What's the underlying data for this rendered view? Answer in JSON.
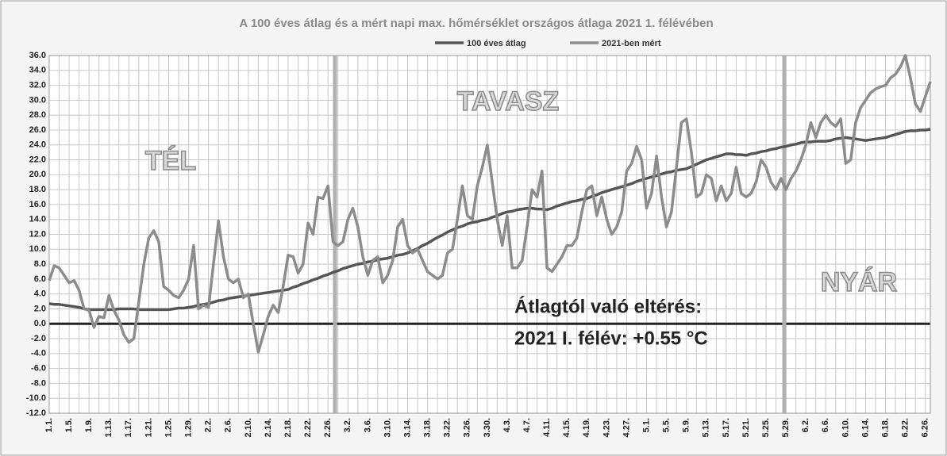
{
  "chart_data": {
    "type": "line",
    "title": "A 100 éves átlag és a mért napi max. hőmérséklet országos átlaga 2021 1. félévében",
    "annotations": [
      "TÉL",
      "TAVASZ",
      "NYÁR",
      "Átlagtól való eltérés:",
      "2021 I. félév: +0.55 °C"
    ],
    "ylim": [
      -12,
      36
    ],
    "yticks": [
      {
        "value": -12,
        "label": "-12.0"
      },
      {
        "value": -10,
        "label": "-10.0"
      },
      {
        "value": -8,
        "label": "-8.0"
      },
      {
        "value": -6,
        "label": "-6.0"
      },
      {
        "value": -4,
        "label": "-4.0"
      },
      {
        "value": -2,
        "label": "-2.0"
      },
      {
        "value": 0,
        "label": "0.0"
      },
      {
        "value": 2,
        "label": "2.0"
      },
      {
        "value": 4,
        "label": "4.0"
      },
      {
        "value": 6,
        "label": "6.0"
      },
      {
        "value": 8,
        "label": "8.0"
      },
      {
        "value": 10,
        "label": "10.0"
      },
      {
        "value": 12,
        "label": "12.0"
      },
      {
        "value": 14,
        "label": "14.0"
      },
      {
        "value": 16,
        "label": "16.0"
      },
      {
        "value": 18,
        "label": "18.0"
      },
      {
        "value": 20,
        "label": "20.0"
      },
      {
        "value": 22,
        "label": "22.0"
      },
      {
        "value": 24,
        "label": "24.0"
      },
      {
        "value": 26,
        "label": "26.0"
      },
      {
        "value": 28,
        "label": "28.0"
      },
      {
        "value": 30,
        "label": "30.0"
      },
      {
        "value": 32,
        "label": "32.0"
      },
      {
        "value": 34,
        "label": "34.0"
      },
      {
        "value": 36,
        "label": "36.0"
      }
    ],
    "grid": true,
    "categories": [
      "1.1.",
      null,
      null,
      null,
      "1.5.",
      null,
      null,
      null,
      "1.9.",
      null,
      null,
      null,
      "1.13.",
      null,
      null,
      null,
      "1.17.",
      null,
      null,
      null,
      "1.21.",
      null,
      null,
      null,
      "1.25.",
      null,
      null,
      null,
      "1.29.",
      null,
      null,
      null,
      "2.2.",
      null,
      null,
      null,
      "2.6.",
      null,
      null,
      null,
      "2.10.",
      null,
      null,
      null,
      "2.14.",
      null,
      null,
      null,
      "2.18.",
      null,
      null,
      null,
      "2.22.",
      null,
      null,
      null,
      "2.26.",
      null,
      null,
      null,
      "3.2.",
      null,
      null,
      null,
      "3.6.",
      null,
      null,
      null,
      "3.10.",
      null,
      null,
      null,
      "3.14.",
      null,
      null,
      null,
      "3.18.",
      null,
      null,
      null,
      "3.22.",
      null,
      null,
      null,
      "3.26.",
      null,
      null,
      null,
      "3.30.",
      null,
      null,
      null,
      "4.3.",
      null,
      null,
      null,
      "4.7.",
      null,
      null,
      null,
      "4.11.",
      null,
      null,
      null,
      "4.15.",
      null,
      null,
      null,
      "4.19.",
      null,
      null,
      null,
      "4.23.",
      null,
      null,
      null,
      "4.27.",
      null,
      null,
      null,
      "5.1.",
      null,
      null,
      null,
      "5.5.",
      null,
      null,
      null,
      "5.9.",
      null,
      null,
      null,
      "5.13.",
      null,
      null,
      null,
      "5.17.",
      null,
      null,
      null,
      "5.21.",
      null,
      null,
      null,
      "5.25.",
      null,
      null,
      null,
      "5.29.",
      null,
      null,
      null,
      "6.2.",
      null,
      null,
      null,
      "6.6.",
      null,
      null,
      null,
      "6.10.",
      null,
      null,
      null,
      "6.14.",
      null,
      null,
      null,
      "6.18.",
      null,
      null,
      null,
      "6.22.",
      null,
      null,
      null,
      "6.26.",
      null
    ],
    "series": [
      {
        "name": "100 éves átlag",
        "color": "#555555",
        "values": [
          2.7,
          2.6,
          2.6,
          2.5,
          2.4,
          2.3,
          2.2,
          2.0,
          1.9,
          1.9,
          1.9,
          1.9,
          1.9,
          1.9,
          2.0,
          2.0,
          2.0,
          2.0,
          1.9,
          1.9,
          1.9,
          1.9,
          1.9,
          1.9,
          1.9,
          2.0,
          2.1,
          2.1,
          2.2,
          2.3,
          2.5,
          2.6,
          2.7,
          2.9,
          3.1,
          3.2,
          3.4,
          3.5,
          3.6,
          3.7,
          3.8,
          3.9,
          4.0,
          4.1,
          4.2,
          4.3,
          4.4,
          4.5,
          4.6,
          4.9,
          5.1,
          5.4,
          5.6,
          5.9,
          6.1,
          6.4,
          6.6,
          6.9,
          7.1,
          7.4,
          7.6,
          7.8,
          8.0,
          8.1,
          8.3,
          8.4,
          8.6,
          8.7,
          8.8,
          9.0,
          9.2,
          9.3,
          9.5,
          9.8,
          10.1,
          10.5,
          10.8,
          11.2,
          11.6,
          11.9,
          12.3,
          12.6,
          12.9,
          13.1,
          13.4,
          13.6,
          13.7,
          13.9,
          14.0,
          14.3,
          14.5,
          14.8,
          15.0,
          15.1,
          15.3,
          15.4,
          15.5,
          15.5,
          15.4,
          15.4,
          15.3,
          15.5,
          15.8,
          16.0,
          16.2,
          16.4,
          16.5,
          16.7,
          16.8,
          17.1,
          17.3,
          17.6,
          17.8,
          18.0,
          18.2,
          18.4,
          18.6,
          18.8,
          19.1,
          19.3,
          19.5,
          19.7,
          19.9,
          20.1,
          20.3,
          20.4,
          20.6,
          20.7,
          20.8,
          21.1,
          21.4,
          21.7,
          22.0,
          22.2,
          22.4,
          22.6,
          22.8,
          22.8,
          22.7,
          22.7,
          22.6,
          22.8,
          22.9,
          23.1,
          23.2,
          23.4,
          23.5,
          23.7,
          23.8,
          24.0,
          24.1,
          24.3,
          24.4,
          24.4,
          24.5,
          24.5,
          24.5,
          24.6,
          24.8,
          24.9,
          25.0,
          24.9,
          24.8,
          24.7,
          24.6,
          24.7,
          24.8,
          24.9,
          25.0,
          25.2,
          25.4,
          25.6,
          25.8,
          25.9,
          25.9,
          26.0,
          26.0,
          26.1
        ]
      },
      {
        "name": "2021-ben mért",
        "color": "#8c8c8c",
        "values": [
          5.8,
          7.8,
          7.5,
          6.5,
          5.5,
          5.8,
          4.5,
          2.0,
          1.8,
          -0.5,
          1.0,
          0.8,
          3.8,
          1.8,
          0.5,
          -1.5,
          -2.5,
          -2.0,
          3.0,
          8.0,
          11.5,
          12.5,
          11.0,
          5.0,
          4.5,
          3.8,
          3.5,
          4.5,
          6.0,
          10.5,
          2.0,
          2.5,
          2.2,
          8.0,
          13.8,
          9.0,
          6.0,
          5.5,
          6.0,
          3.5,
          4.0,
          0.0,
          -3.8,
          -1.5,
          1.0,
          2.5,
          1.5,
          5.0,
          9.2,
          9.0,
          6.8,
          8.0,
          13.5,
          12.0,
          17.0,
          16.8,
          18.5,
          11.0,
          10.5,
          11.0,
          14.0,
          15.5,
          13.0,
          9.0,
          6.5,
          8.5,
          9.0,
          5.5,
          6.5,
          8.5,
          13.0,
          14.0,
          10.5,
          9.5,
          10.0,
          8.5,
          7.0,
          6.5,
          6.0,
          6.5,
          9.5,
          10.0,
          14.0,
          18.5,
          14.5,
          14.0,
          18.5,
          21.0,
          24.0,
          19.0,
          14.0,
          10.5,
          14.5,
          7.5,
          7.5,
          8.5,
          13.0,
          18.0,
          17.0,
          20.5,
          7.5,
          7.0,
          8.0,
          9.0,
          10.5,
          10.5,
          11.5,
          15.0,
          18.0,
          18.5,
          14.5,
          17.0,
          14.0,
          12.0,
          13.0,
          15.0,
          20.5,
          21.5,
          23.8,
          22.0,
          15.5,
          17.5,
          22.5,
          17.0,
          13.0,
          15.0,
          21.0,
          27.0,
          27.5,
          23.0,
          17.0,
          17.5,
          20.0,
          19.5,
          16.5,
          18.5,
          16.5,
          17.5,
          21.0,
          17.5,
          17.0,
          17.5,
          19.0,
          22.0,
          21.0,
          19.0,
          18.0,
          19.5,
          18.0,
          19.5,
          20.5,
          22.0,
          24.0,
          27.0,
          25.0,
          27.0,
          28.0,
          27.0,
          26.5,
          27.5,
          21.5,
          22.0,
          27.0,
          29.0,
          30.0,
          31.0,
          31.5,
          31.8,
          32.0,
          33.0,
          33.5,
          34.5,
          36.0,
          33.0,
          29.5,
          28.5,
          30.5,
          32.5
        ]
      }
    ]
  }
}
